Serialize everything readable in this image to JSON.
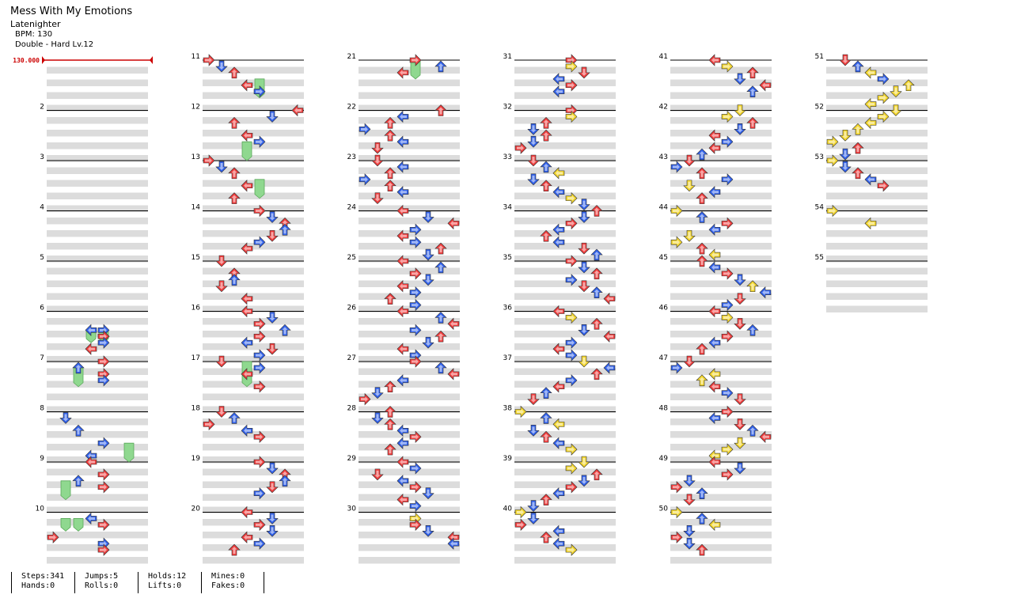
{
  "song": {
    "title": "Mess With My Emotions",
    "artist": "Latenighter",
    "bpm_label": "BPM: 130",
    "difficulty_label": "Double - Hard Lv.12"
  },
  "bpm_marker": "130.000",
  "measure_numbers": [
    "2",
    "3",
    "4",
    "5",
    "6",
    "7",
    "8",
    "9",
    "10",
    "11",
    "12",
    "13",
    "14",
    "15",
    "16",
    "17",
    "18",
    "19",
    "20",
    "21",
    "22",
    "23",
    "24",
    "25",
    "26",
    "27",
    "28",
    "29",
    "30",
    "31",
    "32",
    "33",
    "34",
    "35",
    "36",
    "37",
    "38",
    "39",
    "40",
    "41",
    "42",
    "43",
    "44",
    "45",
    "46",
    "47",
    "48",
    "49",
    "50",
    "51",
    "52",
    "53",
    "54",
    "55"
  ],
  "stats": [
    {
      "top": "Steps:341",
      "bottom": "Hands:0"
    },
    {
      "top": "Jumps:5",
      "bottom": "Rolls:0"
    },
    {
      "top": "Holds:12",
      "bottom": "Lifts:0"
    },
    {
      "top": "Mines:0",
      "bottom": "Fakes:0"
    }
  ],
  "colors": {
    "quarter": "#ee3b3b",
    "eighth": "#2f5fe8",
    "sixteenth": "#f2d52b",
    "hold": "#8fd88f",
    "bpm_line": "#cc0000"
  },
  "notes": [
    {
      "m": 6,
      "r": [
        [
          3,
          4
        ]
      ]
    },
    {
      "m": 6,
      "r": [
        [
          4,
          4
        ]
      ]
    },
    {
      "m": 6,
      "r": [
        [
          3,
          3
        ],
        [
          4,
          4
        ],
        [
          5,
          4
        ],
        [
          6,
          3
        ]
      ]
    },
    {
      "m": 7,
      "r": [
        [
          0,
          4
        ],
        [
          1,
          2
        ],
        [
          2,
          4
        ],
        [
          3,
          4
        ]
      ]
    },
    {
      "m": 8,
      "r": [
        [
          1,
          1
        ],
        [
          3,
          2
        ],
        [
          5,
          4
        ],
        [
          7,
          3
        ]
      ]
    },
    {
      "m": 9,
      "r": [
        [
          0,
          3
        ],
        [
          2,
          4
        ],
        [
          3,
          2
        ],
        [
          4,
          4
        ]
      ]
    },
    {
      "m": 10,
      "r": [
        [
          1,
          3
        ],
        [
          2,
          4
        ],
        [
          4,
          0
        ],
        [
          5,
          4
        ],
        [
          6,
          4
        ]
      ]
    },
    {
      "m": 11,
      "r": [
        [
          0,
          0
        ],
        [
          1,
          1
        ],
        [
          2,
          2
        ],
        [
          4,
          3
        ],
        [
          5,
          4
        ]
      ]
    },
    {
      "m": 12,
      "r": [
        [
          0,
          7
        ],
        [
          1,
          5
        ],
        [
          2,
          2
        ],
        [
          4,
          3
        ],
        [
          5,
          4
        ]
      ]
    },
    {
      "m": 13,
      "r": [
        [
          0,
          0
        ],
        [
          1,
          1
        ],
        [
          2,
          2
        ],
        [
          4,
          3
        ],
        [
          6,
          2
        ]
      ]
    },
    {
      "m": 14,
      "r": [
        [
          0,
          4
        ],
        [
          1,
          5
        ],
        [
          2,
          6
        ],
        [
          3,
          6
        ],
        [
          4,
          5
        ],
        [
          5,
          4
        ],
        [
          6,
          3
        ]
      ]
    },
    {
      "m": 15,
      "r": [
        [
          0,
          1
        ],
        [
          2,
          2
        ],
        [
          3,
          2
        ],
        [
          4,
          1
        ],
        [
          6,
          3
        ]
      ]
    },
    {
      "m": 16,
      "r": [
        [
          0,
          3
        ],
        [
          1,
          5
        ],
        [
          2,
          4
        ],
        [
          3,
          6
        ],
        [
          4,
          4
        ],
        [
          5,
          3
        ],
        [
          6,
          5
        ],
        [
          7,
          4
        ]
      ]
    },
    {
      "m": 17,
      "r": [
        [
          0,
          1
        ],
        [
          1,
          4
        ],
        [
          2,
          3
        ],
        [
          4,
          4
        ]
      ]
    },
    {
      "m": 18,
      "r": [
        [
          0,
          1
        ],
        [
          1,
          2
        ],
        [
          2,
          0
        ],
        [
          3,
          3
        ],
        [
          4,
          4
        ]
      ]
    },
    {
      "m": 19,
      "r": [
        [
          0,
          4
        ],
        [
          1,
          5
        ],
        [
          2,
          6
        ],
        [
          3,
          6
        ],
        [
          4,
          5
        ],
        [
          5,
          4
        ]
      ]
    },
    {
      "m": 20,
      "r": [
        [
          0,
          3
        ],
        [
          1,
          5
        ],
        [
          2,
          4
        ],
        [
          3,
          5
        ],
        [
          4,
          3
        ],
        [
          5,
          4
        ],
        [
          6,
          2
        ]
      ]
    },
    {
      "m": 21,
      "r": [
        [
          0,
          4
        ],
        [
          1,
          6
        ],
        [
          2,
          3
        ]
      ]
    },
    {
      "m": 22,
      "r": [
        [
          0,
          6
        ],
        [
          1,
          3
        ],
        [
          2,
          2
        ],
        [
          3,
          0
        ],
        [
          4,
          2
        ],
        [
          5,
          3
        ],
        [
          6,
          1
        ]
      ]
    },
    {
      "m": 23,
      "r": [
        [
          0,
          1
        ],
        [
          1,
          3
        ],
        [
          2,
          2
        ],
        [
          3,
          0
        ],
        [
          4,
          2
        ],
        [
          5,
          3
        ],
        [
          6,
          1
        ]
      ]
    },
    {
      "m": 24,
      "r": [
        [
          0,
          3
        ],
        [
          1,
          5
        ],
        [
          2,
          7
        ],
        [
          3,
          4
        ],
        [
          4,
          3
        ],
        [
          5,
          4
        ],
        [
          6,
          6
        ],
        [
          7,
          5
        ]
      ]
    },
    {
      "m": 25,
      "r": [
        [
          0,
          3
        ],
        [
          1,
          6
        ],
        [
          2,
          4
        ],
        [
          3,
          5
        ],
        [
          4,
          3
        ],
        [
          5,
          4
        ],
        [
          6,
          2
        ],
        [
          7,
          4
        ]
      ]
    },
    {
      "m": 26,
      "r": [
        [
          0,
          3
        ],
        [
          1,
          6
        ],
        [
          2,
          7
        ],
        [
          3,
          4
        ],
        [
          4,
          6
        ],
        [
          5,
          5
        ],
        [
          6,
          3
        ],
        [
          7,
          4
        ]
      ]
    },
    {
      "m": 27,
      "r": [
        [
          0,
          4
        ],
        [
          1,
          6
        ],
        [
          2,
          7
        ],
        [
          3,
          3
        ],
        [
          4,
          2
        ],
        [
          5,
          1
        ],
        [
          6,
          0
        ]
      ]
    },
    {
      "m": 28,
      "r": [
        [
          0,
          2
        ],
        [
          1,
          1
        ],
        [
          2,
          2
        ],
        [
          3,
          3
        ],
        [
          4,
          4
        ],
        [
          5,
          3
        ],
        [
          6,
          2
        ]
      ]
    },
    {
      "m": 29,
      "r": [
        [
          0,
          3
        ],
        [
          1,
          4
        ],
        [
          2,
          1
        ],
        [
          3,
          3
        ],
        [
          4,
          4
        ],
        [
          5,
          5
        ],
        [
          6,
          3
        ],
        [
          7,
          4
        ]
      ]
    },
    {
      "m": 30,
      "r": [
        [
          1,
          4
        ],
        [
          2,
          4
        ],
        [
          3,
          5
        ],
        [
          4,
          7
        ],
        [
          5,
          7
        ]
      ]
    },
    {
      "m": 31,
      "r": [
        [
          0,
          4
        ],
        [
          1,
          4
        ],
        [
          2,
          5
        ],
        [
          3,
          3
        ],
        [
          4,
          4
        ],
        [
          5,
          3
        ]
      ]
    },
    {
      "m": 32,
      "r": [
        [
          0,
          4
        ],
        [
          1,
          4
        ],
        [
          2,
          2
        ],
        [
          3,
          1
        ],
        [
          4,
          2
        ],
        [
          5,
          1
        ],
        [
          6,
          0
        ]
      ]
    },
    {
      "m": 33,
      "r": [
        [
          0,
          1
        ],
        [
          1,
          2
        ],
        [
          2,
          3
        ],
        [
          3,
          1
        ],
        [
          4,
          2
        ],
        [
          5,
          3
        ],
        [
          6,
          4
        ],
        [
          7,
          5
        ]
      ]
    },
    {
      "m": 34,
      "r": [
        [
          0,
          6
        ],
        [
          1,
          5
        ],
        [
          2,
          4
        ],
        [
          3,
          3
        ],
        [
          4,
          2
        ],
        [
          5,
          3
        ],
        [
          6,
          5
        ],
        [
          7,
          6
        ]
      ]
    },
    {
      "m": 35,
      "r": [
        [
          0,
          4
        ],
        [
          1,
          5
        ],
        [
          2,
          6
        ],
        [
          3,
          4
        ],
        [
          4,
          5
        ],
        [
          5,
          6
        ],
        [
          6,
          7
        ]
      ]
    },
    {
      "m": 36,
      "r": [
        [
          0,
          3
        ],
        [
          1,
          4
        ],
        [
          2,
          6
        ],
        [
          3,
          5
        ],
        [
          4,
          7
        ],
        [
          5,
          4
        ],
        [
          6,
          3
        ],
        [
          7,
          4
        ]
      ]
    },
    {
      "m": 37,
      "r": [
        [
          0,
          5
        ],
        [
          1,
          7
        ],
        [
          2,
          6
        ],
        [
          3,
          4
        ],
        [
          4,
          3
        ],
        [
          5,
          2
        ],
        [
          6,
          1
        ]
      ]
    },
    {
      "m": 38,
      "r": [
        [
          0,
          0
        ],
        [
          1,
          2
        ],
        [
          2,
          3
        ],
        [
          3,
          1
        ],
        [
          4,
          2
        ],
        [
          5,
          3
        ],
        [
          6,
          4
        ]
      ]
    },
    {
      "m": 39,
      "r": [
        [
          0,
          5
        ],
        [
          1,
          4
        ],
        [
          2,
          6
        ],
        [
          3,
          5
        ],
        [
          4,
          4
        ],
        [
          5,
          3
        ],
        [
          6,
          2
        ],
        [
          7,
          1
        ]
      ]
    },
    {
      "m": 40,
      "r": [
        [
          0,
          0
        ],
        [
          1,
          1
        ],
        [
          2,
          0
        ],
        [
          3,
          3
        ],
        [
          4,
          2
        ],
        [
          5,
          3
        ],
        [
          6,
          4
        ]
      ]
    },
    {
      "m": 41,
      "r": [
        [
          0,
          3
        ],
        [
          1,
          4
        ],
        [
          2,
          6
        ],
        [
          3,
          5
        ],
        [
          4,
          7
        ],
        [
          5,
          6
        ]
      ]
    },
    {
      "m": 42,
      "r": [
        [
          0,
          5
        ],
        [
          1,
          4
        ],
        [
          2,
          6
        ],
        [
          3,
          5
        ],
        [
          4,
          3
        ],
        [
          5,
          4
        ],
        [
          6,
          3
        ],
        [
          7,
          2
        ]
      ]
    },
    {
      "m": 43,
      "r": [
        [
          0,
          1
        ],
        [
          1,
          0
        ],
        [
          2,
          2
        ],
        [
          3,
          4
        ],
        [
          4,
          1
        ],
        [
          5,
          3
        ],
        [
          6,
          2
        ]
      ]
    },
    {
      "m": 44,
      "r": [
        [
          0,
          0
        ],
        [
          1,
          2
        ],
        [
          2,
          4
        ],
        [
          3,
          3
        ],
        [
          4,
          1
        ],
        [
          5,
          0
        ],
        [
          6,
          2
        ],
        [
          7,
          3
        ]
      ]
    },
    {
      "m": 45,
      "r": [
        [
          0,
          2
        ],
        [
          1,
          3
        ],
        [
          2,
          4
        ],
        [
          3,
          5
        ],
        [
          4,
          6
        ],
        [
          5,
          7
        ],
        [
          6,
          5
        ],
        [
          7,
          4
        ]
      ]
    },
    {
      "m": 46,
      "r": [
        [
          0,
          3
        ],
        [
          1,
          4
        ],
        [
          2,
          5
        ],
        [
          3,
          6
        ],
        [
          4,
          4
        ],
        [
          5,
          3
        ],
        [
          6,
          2
        ]
      ]
    },
    {
      "m": 47,
      "r": [
        [
          0,
          1
        ],
        [
          1,
          0
        ],
        [
          2,
          3
        ],
        [
          3,
          2
        ],
        [
          4,
          3
        ],
        [
          5,
          4
        ],
        [
          6,
          5
        ]
      ]
    },
    {
      "m": 48,
      "r": [
        [
          0,
          4
        ],
        [
          1,
          3
        ],
        [
          2,
          5
        ],
        [
          3,
          6
        ],
        [
          4,
          7
        ],
        [
          5,
          5
        ],
        [
          6,
          4
        ],
        [
          7,
          3
        ]
      ]
    },
    {
      "m": 49,
      "r": [
        [
          0,
          3
        ],
        [
          1,
          5
        ],
        [
          2,
          4
        ],
        [
          3,
          1
        ],
        [
          4,
          0
        ],
        [
          5,
          2
        ],
        [
          6,
          1
        ]
      ]
    },
    {
      "m": 50,
      "r": [
        [
          0,
          0
        ],
        [
          1,
          2
        ],
        [
          2,
          3
        ],
        [
          3,
          1
        ],
        [
          4,
          0
        ],
        [
          5,
          1
        ],
        [
          6,
          2
        ]
      ]
    },
    {
      "m": 51,
      "r": [
        [
          0,
          1
        ],
        [
          1,
          2
        ],
        [
          2,
          3
        ],
        [
          3,
          4
        ],
        [
          4,
          6
        ],
        [
          5,
          5
        ],
        [
          6,
          4
        ],
        [
          7,
          3
        ]
      ]
    },
    {
      "m": 52,
      "r": [
        [
          0,
          5
        ],
        [
          1,
          4
        ],
        [
          2,
          3
        ],
        [
          3,
          2
        ],
        [
          4,
          1
        ],
        [
          5,
          0
        ],
        [
          6,
          2
        ],
        [
          7,
          1
        ]
      ]
    },
    {
      "m": 53,
      "r": [
        [
          0,
          0
        ],
        [
          1,
          1
        ],
        [
          2,
          2
        ],
        [
          3,
          3
        ],
        [
          4,
          4
        ]
      ]
    },
    {
      "m": 54,
      "r": [
        [
          0,
          0
        ],
        [
          2,
          3
        ]
      ]
    }
  ]
}
